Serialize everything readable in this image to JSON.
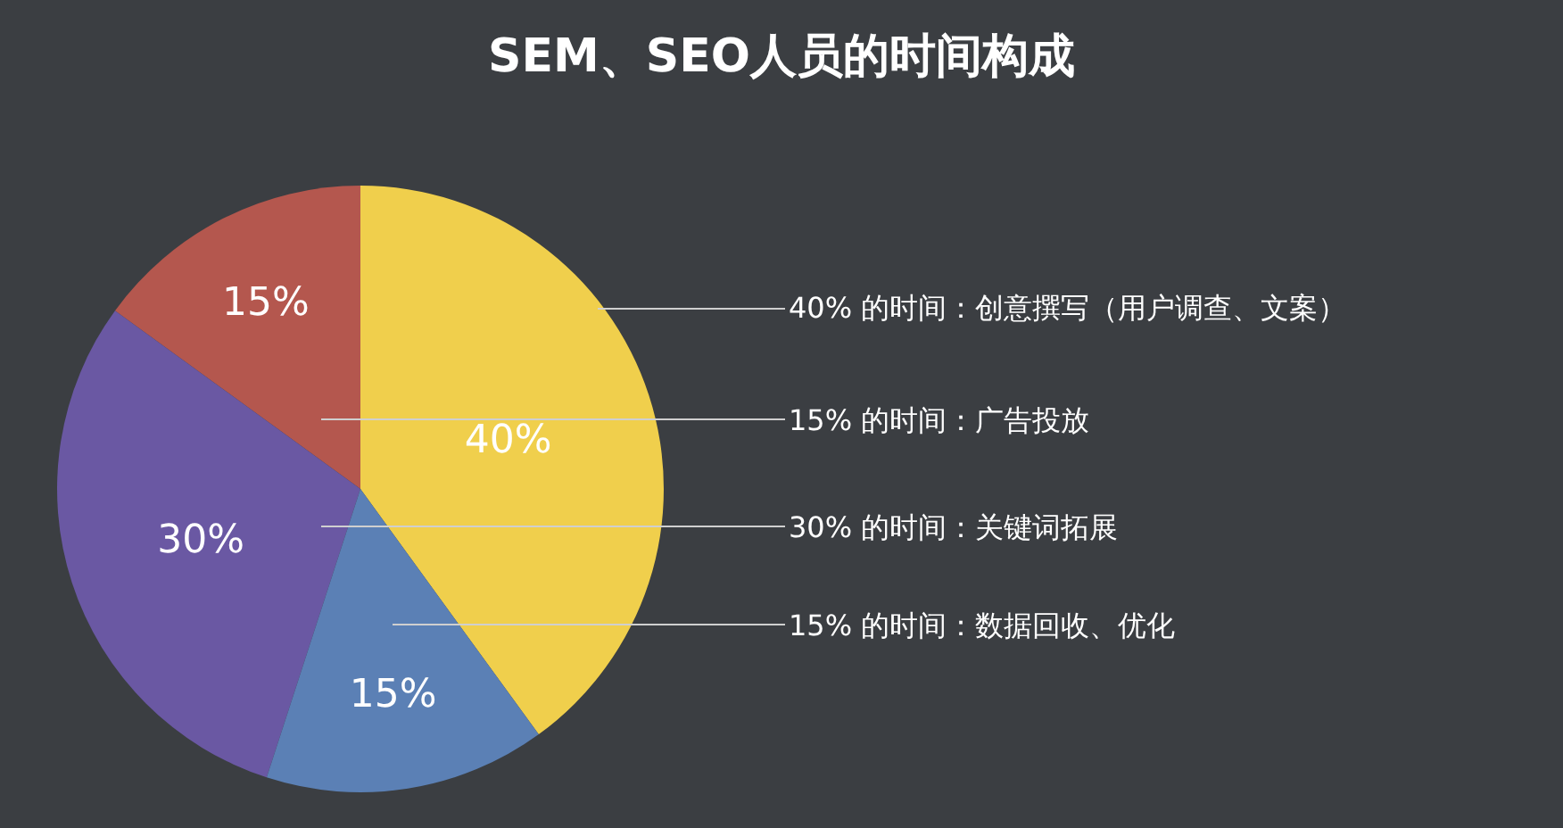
{
  "chart_data": {
    "type": "pie",
    "title": "SEM、SEO人员的时间构成",
    "categories": [
      "40% 的时间：创意撰写（用户调查、文案）",
      "15% 的时间：广告投放",
      "30% 的时间：关键词拓展",
      "15% 的时间：数据回收、优化"
    ],
    "values": [
      40,
      15,
      30,
      15
    ],
    "value_labels": [
      "40%",
      "15%",
      "30%",
      "15%"
    ],
    "colors": [
      "#f0cf4c",
      "#b4574e",
      "#6a58a3",
      "#5b80b5"
    ],
    "legend": false
  }
}
